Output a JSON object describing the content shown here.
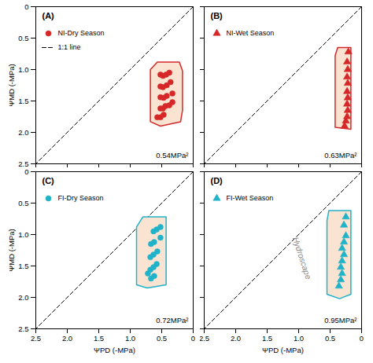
{
  "chart_data": [
    {
      "type": "scatter",
      "title": "(A)",
      "ylabel": "ΨMD (-MPa)",
      "xlim": [
        2.5,
        0
      ],
      "ylim": [
        2.5,
        0
      ],
      "xticks": [
        2.5,
        {
          "value": 2.0,
          "label": "2.0"
        },
        1.5,
        {
          "value": 1.0,
          "label": "1.0"
        },
        0.5,
        0
      ],
      "yticks": [
        0,
        0.5,
        {
          "value": 1.0,
          "label": "1.0"
        },
        1.5,
        {
          "value": 2.0,
          "label": "2.0"
        },
        2.5
      ],
      "tick_labels": "y",
      "legend": "upper left",
      "series": [
        {
          "name": "NI-Dry Season",
          "color": "#d62728",
          "marker": "circle",
          "x": [
            0.38,
            0.43,
            0.48,
            0.52,
            0.36,
            0.42,
            0.48,
            0.52,
            0.33,
            0.42,
            0.47,
            0.52,
            0.33,
            0.38,
            0.44,
            0.48,
            0.52,
            0.47,
            0.52,
            0.57
          ],
          "y": [
            1.05,
            1.08,
            1.1,
            1.08,
            1.2,
            1.25,
            1.28,
            1.27,
            1.38,
            1.42,
            1.45,
            1.44,
            1.52,
            1.57,
            1.58,
            1.62,
            1.62,
            1.72,
            1.76,
            1.76
          ]
        }
      ],
      "polygon": {
        "color": "#fae3d0",
        "x": [
          0.22,
          0.57,
          0.68,
          0.68,
          0.52,
          0.2,
          0.17,
          0.17
        ],
        "y": [
          0.88,
          0.88,
          1.0,
          1.83,
          1.9,
          1.83,
          1.65,
          1.02
        ]
      },
      "reference_line": {
        "name": "1:1 line",
        "color": "black",
        "line_style": "dashed",
        "x": [
          0,
          2.5
        ],
        "y": [
          0,
          2.5
        ]
      },
      "area_label": "0.54MPa²"
    },
    {
      "type": "scatter",
      "title": "(B)",
      "xlim": [
        2.5,
        0
      ],
      "ylim": [
        2.5,
        0
      ],
      "xticks": [
        2.5,
        {
          "value": 2.0,
          "label": "2.0"
        },
        1.5,
        {
          "value": 1.0,
          "label": "1.0"
        },
        0.5,
        0
      ],
      "yticks": [
        0,
        0.5,
        {
          "value": 1.0,
          "label": "1.0"
        },
        1.5,
        {
          "value": 2.0,
          "label": "2.0"
        },
        2.5
      ],
      "tick_labels": false,
      "legend": "upper left",
      "series": [
        {
          "name": "NI-Wet Season",
          "color": "#d62728",
          "marker": "triangle",
          "x": [
            0.21,
            0.23,
            0.22,
            0.23,
            0.22,
            0.23,
            0.22,
            0.23,
            0.22,
            0.23,
            0.25,
            0.27
          ],
          "y": [
            0.72,
            0.88,
            1.0,
            1.12,
            1.22,
            1.35,
            1.45,
            1.55,
            1.65,
            1.75,
            1.82,
            1.9
          ]
        }
      ],
      "polygon": {
        "color": "#fae3d0",
        "x": [
          0.17,
          0.38,
          0.42,
          0.42,
          0.17
        ],
        "y": [
          0.65,
          0.65,
          0.78,
          1.92,
          1.95
        ]
      },
      "reference_line": {
        "color": "black",
        "line_style": "dashed",
        "x": [
          0,
          2.5
        ],
        "y": [
          0,
          2.5
        ]
      },
      "area_label": "0.63MPa²"
    },
    {
      "type": "scatter",
      "title": "(C)",
      "xlabel": "ΨPD (-MPa)",
      "ylabel": "ΨMD (-MPa)",
      "xlim": [
        2.5,
        0
      ],
      "ylim": [
        2.5,
        0
      ],
      "xticks": [
        2.5,
        {
          "value": 2.0,
          "label": "2.0"
        },
        1.5,
        {
          "value": 1.0,
          "label": "1.0"
        },
        0.5,
        0
      ],
      "yticks": [
        0,
        0.5,
        {
          "value": 1.0,
          "label": "1.0"
        },
        1.5,
        {
          "value": 2.0,
          "label": "2.0"
        },
        2.5
      ],
      "legend": "upper left",
      "series": [
        {
          "name": "FI-Dry Season",
          "color": "#20b2c8",
          "marker": "circle",
          "x": [
            0.52,
            0.58,
            0.63,
            0.52,
            0.62,
            0.67,
            0.57,
            0.63,
            0.68,
            0.58,
            0.63,
            0.68,
            0.62,
            0.67,
            0.72
          ],
          "y": [
            0.88,
            0.92,
            0.95,
            1.05,
            1.12,
            1.15,
            1.27,
            1.32,
            1.36,
            1.47,
            1.52,
            1.56,
            1.66,
            1.7,
            1.62
          ]
        }
      ],
      "polygon": {
        "color": "#fae3d0",
        "x": [
          0.43,
          0.8,
          0.9,
          0.9,
          0.73,
          0.43
        ],
        "y": [
          0.72,
          0.72,
          0.88,
          1.8,
          1.85,
          1.8
        ]
      },
      "reference_line": {
        "color": "black",
        "line_style": "dashed",
        "x": [
          0,
          2.5
        ],
        "y": [
          0,
          2.5
        ]
      },
      "area_label": "0.72MPa²"
    },
    {
      "type": "scatter",
      "title": "(D)",
      "xlabel": "ΨPD (-MPa)",
      "xlim": [
        2.5,
        0
      ],
      "ylim": [
        2.5,
        0
      ],
      "xticks": [
        2.5,
        {
          "value": 2.0,
          "label": "2.0"
        },
        1.5,
        {
          "value": 1.0,
          "label": "1.0"
        },
        0.5,
        0
      ],
      "yticks": [
        0,
        0.5,
        {
          "value": 1.0,
          "label": "1.0"
        },
        1.5,
        {
          "value": 2.0,
          "label": "2.0"
        },
        2.5
      ],
      "tick_labels": "x",
      "legend": "upper left",
      "series": [
        {
          "name": "FI-Wet Season",
          "color": "#20b2c8",
          "marker": "triangle",
          "x": [
            0.25,
            0.28,
            0.25,
            0.28,
            0.31,
            0.28,
            0.31,
            0.33,
            0.31,
            0.33,
            0.36
          ],
          "y": [
            0.72,
            0.85,
            1.02,
            1.12,
            1.22,
            1.32,
            1.42,
            1.52,
            1.62,
            1.72,
            1.82
          ]
        }
      ],
      "polygon": {
        "color": "#fae3d0",
        "x": [
          0.17,
          0.52,
          0.55,
          0.55,
          0.35,
          0.17
        ],
        "y": [
          0.62,
          0.62,
          0.78,
          1.95,
          2.02,
          1.95
        ]
      },
      "reference_line": {
        "color": "black",
        "line_style": "dashed",
        "x": [
          0,
          2.5
        ],
        "y": [
          0,
          2.5
        ]
      },
      "area_label": "0.95MPa²",
      "annotations": [
        {
          "text": "Hydroscape",
          "color": "#888888"
        }
      ]
    }
  ]
}
